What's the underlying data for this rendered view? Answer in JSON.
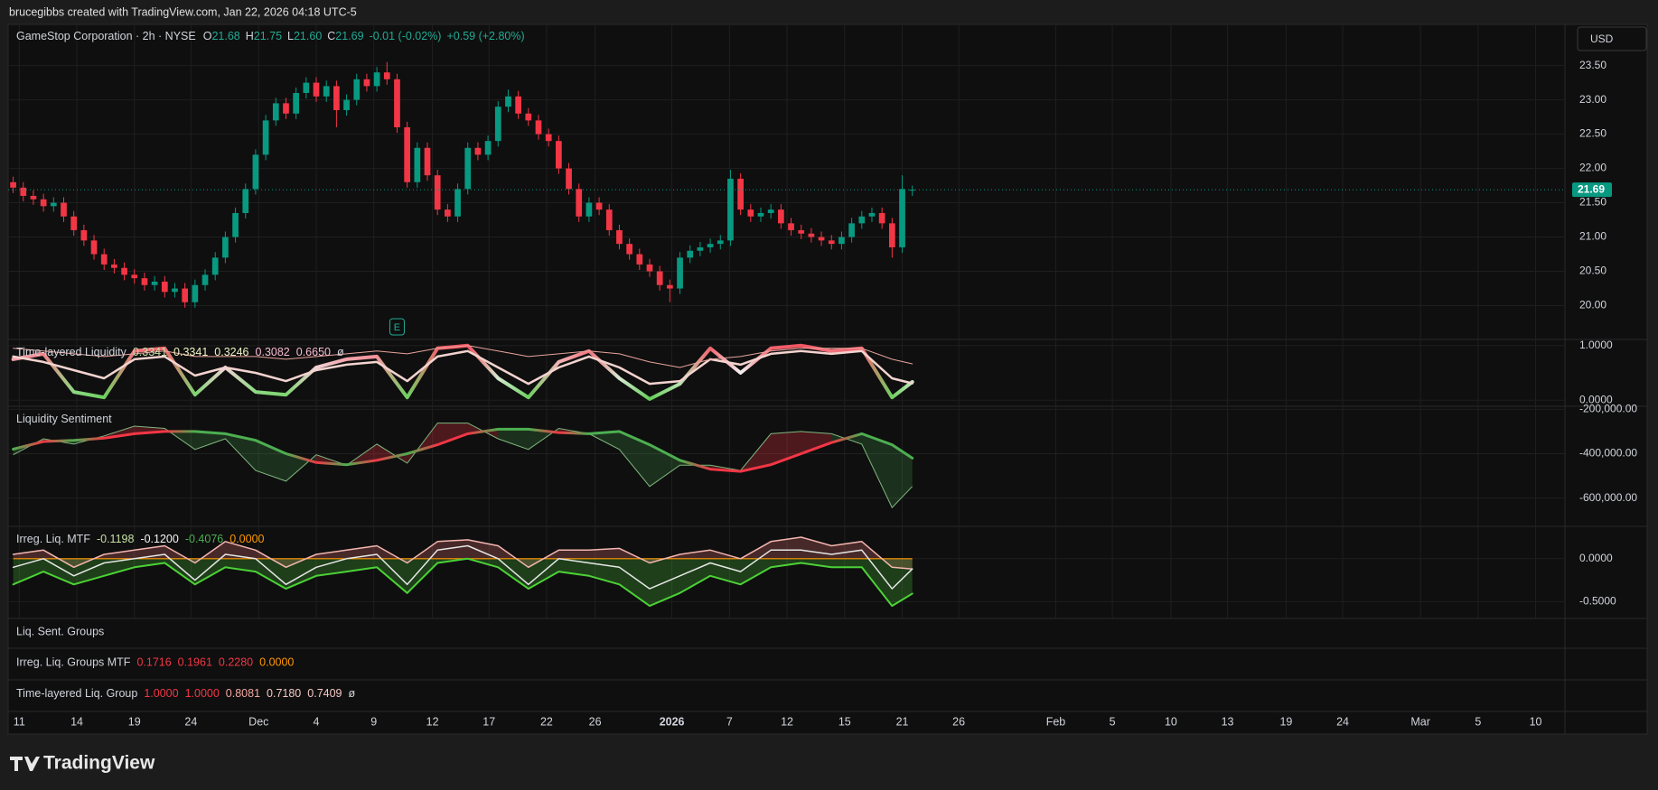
{
  "header": {
    "caption": "brucegibbs created with TradingView.com, Jan 22, 2026 04:18 UTC-5",
    "currency": "USD",
    "brand": "TradingView"
  },
  "chart_data": [
    {
      "type": "candlestick",
      "title": "GameStop Corporation · 2h · NYSE",
      "legend": {
        "prefixes": [
          "O",
          "H",
          "L",
          "C"
        ],
        "labels": [
          "21.68",
          "21.75",
          "21.60",
          "21.69"
        ],
        "change": "-0.01 (-0.02%)",
        "change_total": "+0.59 (+2.80%)",
        "color": "#22ab94"
      },
      "earnings": "E",
      "up_color": "#089981",
      "down_color": "#f23645",
      "grid": true,
      "x": [
        0,
        1,
        2,
        3,
        4,
        5,
        6,
        7,
        8,
        9,
        10,
        11,
        12,
        13,
        14,
        15,
        16,
        17,
        18,
        19,
        20,
        21,
        22,
        23,
        24,
        25,
        26,
        27,
        28,
        29,
        30,
        31,
        32,
        33,
        34,
        35,
        36,
        37,
        38,
        39,
        40,
        41,
        42,
        43,
        44,
        45,
        46,
        47,
        48,
        49,
        50,
        51,
        52,
        53,
        54,
        55,
        56,
        57,
        58,
        59,
        60,
        61,
        62,
        63,
        64,
        65,
        66,
        67,
        68,
        69,
        70,
        71,
        72,
        73,
        74,
        75,
        76,
        77,
        78,
        79,
        80,
        81,
        82,
        83,
        84,
        85,
        86,
        87,
        88,
        89
      ],
      "open": [
        21.8,
        21.72,
        21.6,
        21.55,
        21.45,
        21.5,
        21.3,
        21.1,
        20.95,
        20.75,
        20.6,
        20.55,
        20.45,
        20.4,
        20.3,
        20.35,
        20.2,
        20.25,
        20.05,
        20.3,
        20.45,
        20.7,
        21.0,
        21.35,
        21.7,
        22.2,
        22.7,
        22.95,
        22.8,
        23.1,
        23.25,
        23.05,
        23.2,
        22.85,
        23.0,
        23.3,
        23.2,
        23.4,
        23.3,
        22.6,
        21.8,
        22.3,
        21.9,
        21.4,
        21.3,
        21.7,
        22.3,
        22.2,
        22.4,
        22.9,
        23.05,
        22.8,
        22.7,
        22.5,
        22.4,
        22.0,
        21.7,
        21.3,
        21.5,
        21.4,
        21.1,
        20.9,
        20.75,
        20.6,
        20.5,
        20.3,
        20.25,
        20.7,
        20.8,
        20.85,
        20.9,
        20.95,
        21.85,
        21.4,
        21.3,
        21.35,
        21.4,
        21.2,
        21.1,
        21.05,
        21.0,
        20.95,
        20.9,
        21.0,
        21.2,
        21.3,
        21.35,
        21.2,
        20.85,
        21.68
      ],
      "high": [
        21.88,
        21.8,
        21.68,
        21.63,
        21.58,
        21.58,
        21.38,
        21.18,
        21.03,
        20.83,
        20.68,
        20.63,
        20.53,
        20.48,
        20.43,
        20.43,
        20.33,
        20.33,
        20.38,
        20.53,
        20.78,
        21.08,
        21.43,
        21.78,
        22.28,
        22.78,
        23.03,
        23.03,
        23.18,
        23.33,
        23.33,
        23.28,
        23.28,
        23.08,
        23.38,
        23.38,
        23.48,
        23.55,
        23.38,
        22.68,
        22.38,
        22.38,
        21.98,
        21.48,
        21.78,
        22.38,
        22.38,
        22.48,
        22.98,
        23.15,
        23.13,
        22.88,
        22.78,
        22.58,
        22.48,
        22.08,
        21.78,
        21.58,
        21.58,
        21.48,
        21.18,
        20.98,
        20.83,
        20.68,
        20.58,
        20.38,
        20.78,
        20.88,
        20.93,
        20.98,
        21.03,
        21.98,
        21.93,
        21.48,
        21.43,
        21.48,
        21.48,
        21.28,
        21.18,
        21.13,
        21.08,
        21.03,
        21.08,
        21.28,
        21.38,
        21.43,
        21.43,
        21.28,
        21.9,
        21.75
      ],
      "low": [
        21.64,
        21.52,
        21.47,
        21.37,
        21.37,
        21.22,
        21.02,
        20.87,
        20.67,
        20.52,
        20.47,
        20.37,
        20.32,
        20.22,
        20.22,
        20.12,
        20.12,
        19.97,
        19.97,
        20.22,
        20.37,
        20.62,
        20.92,
        21.27,
        21.62,
        22.12,
        22.62,
        22.72,
        22.72,
        23.02,
        22.97,
        22.97,
        22.6,
        22.77,
        22.92,
        23.12,
        23.12,
        23.22,
        22.52,
        21.72,
        21.72,
        21.82,
        21.32,
        21.22,
        21.22,
        21.62,
        22.12,
        22.12,
        22.32,
        22.82,
        22.72,
        22.62,
        22.42,
        22.32,
        21.92,
        21.62,
        21.22,
        21.22,
        21.32,
        21.02,
        20.82,
        20.67,
        20.52,
        20.42,
        20.22,
        20.05,
        20.17,
        20.62,
        20.72,
        20.77,
        20.82,
        20.87,
        21.32,
        21.22,
        21.22,
        21.27,
        21.12,
        21.02,
        20.97,
        20.92,
        20.87,
        20.82,
        20.82,
        20.92,
        21.12,
        21.22,
        21.12,
        20.7,
        20.77,
        21.6
      ],
      "close": [
        21.72,
        21.6,
        21.55,
        21.45,
        21.5,
        21.3,
        21.1,
        20.95,
        20.75,
        20.6,
        20.55,
        20.45,
        20.4,
        20.3,
        20.35,
        20.2,
        20.25,
        20.05,
        20.3,
        20.45,
        20.7,
        21.0,
        21.35,
        21.7,
        22.2,
        22.7,
        22.95,
        22.8,
        23.1,
        23.25,
        23.05,
        23.2,
        22.85,
        23.0,
        23.3,
        23.2,
        23.4,
        23.3,
        22.6,
        21.8,
        22.3,
        21.9,
        21.4,
        21.3,
        21.7,
        22.3,
        22.2,
        22.4,
        22.9,
        23.05,
        22.8,
        22.7,
        22.5,
        22.4,
        22.0,
        21.7,
        21.3,
        21.5,
        21.4,
        21.1,
        20.9,
        20.75,
        20.6,
        20.5,
        20.3,
        20.25,
        20.7,
        20.8,
        20.85,
        20.9,
        20.95,
        21.85,
        21.4,
        21.3,
        21.35,
        21.4,
        21.2,
        21.1,
        21.05,
        21.0,
        20.95,
        20.9,
        21.0,
        21.2,
        21.3,
        21.35,
        21.2,
        20.85,
        21.7,
        21.69
      ],
      "ylim": [
        19.52,
        24.1
      ],
      "yticks": [
        {
          "value": 20,
          "label": "20.00"
        },
        {
          "value": 20.5,
          "label": "20.50"
        },
        {
          "value": 21,
          "label": "21.00"
        },
        {
          "value": 21.5,
          "label": "21.50"
        },
        {
          "value": 22,
          "label": "22.00"
        },
        {
          "value": 22.5,
          "label": "22.50"
        },
        {
          "value": 23,
          "label": "23.00"
        },
        {
          "value": 23.5,
          "label": "23.50"
        }
      ],
      "xlim": [
        -0.5,
        153.6
      ],
      "xticks": [
        {
          "value": 0.6,
          "label": "11"
        },
        {
          "value": 6.3,
          "label": "14"
        },
        {
          "value": 12,
          "label": "19"
        },
        {
          "value": 17.6,
          "label": "24"
        },
        {
          "value": 24.3,
          "label": "Dec"
        },
        {
          "value": 30,
          "label": "4"
        },
        {
          "value": 35.7,
          "label": "9"
        },
        {
          "value": 41.5,
          "label": "12"
        },
        {
          "value": 47.1,
          "label": "17"
        },
        {
          "value": 52.8,
          "label": "22"
        },
        {
          "value": 57.6,
          "label": "26"
        },
        {
          "value": 65.2,
          "label": "2026",
          "bold": true
        },
        {
          "value": 70.9,
          "label": "7"
        },
        {
          "value": 76.6,
          "label": "12"
        },
        {
          "value": 82.3,
          "label": "15"
        },
        {
          "value": 88,
          "label": "21"
        },
        {
          "value": 93.6,
          "label": "26"
        },
        {
          "value": 103.2,
          "label": "Feb"
        },
        {
          "value": 108.8,
          "label": "5"
        },
        {
          "value": 114.6,
          "label": "10"
        },
        {
          "value": 120.2,
          "label": "13"
        },
        {
          "value": 126,
          "label": "19"
        },
        {
          "value": 131.6,
          "label": "24"
        },
        {
          "value": 139.3,
          "label": "Mar"
        },
        {
          "value": 145,
          "label": "5"
        },
        {
          "value": 150.7,
          "label": "10"
        }
      ]
    },
    {
      "type": "line",
      "title": "Time-layered Liquidity",
      "legend_values": [
        "0.3341",
        "0.3341",
        "0.3246",
        "0.3082",
        "0.6650",
        "ø"
      ],
      "legend_colors": [
        "#c5e1a5",
        "#f0f4c3",
        "#f0f4c3",
        "#f8bbd0",
        "#f8bbd0",
        "#d1d4dc"
      ],
      "gradient": [
        "#43c531",
        "#f2f2f2",
        "#f23645"
      ],
      "x": [
        0,
        3,
        6,
        9,
        12,
        15,
        18,
        21,
        24,
        27,
        30,
        33,
        36,
        39,
        42,
        45,
        48,
        51,
        54,
        57,
        60,
        63,
        66,
        69,
        72,
        75,
        78,
        81,
        84,
        87,
        89
      ],
      "series": [
        {
          "values": [
            0.75,
            0.85,
            0.15,
            0.05,
            0.9,
            0.95,
            0.1,
            0.6,
            0.15,
            0.1,
            0.6,
            0.75,
            0.8,
            0.05,
            0.95,
            1.0,
            0.4,
            0.05,
            0.7,
            0.9,
            0.4,
            0.02,
            0.3,
            0.95,
            0.5,
            0.95,
            1.0,
            0.9,
            0.95,
            0.05,
            0.3341
          ],
          "gradient": true,
          "width": 4
        },
        {
          "values": [
            0.8,
            0.7,
            0.55,
            0.4,
            0.75,
            0.8,
            0.45,
            0.6,
            0.5,
            0.35,
            0.55,
            0.65,
            0.7,
            0.35,
            0.8,
            0.9,
            0.6,
            0.3,
            0.6,
            0.8,
            0.6,
            0.3,
            0.35,
            0.75,
            0.65,
            0.85,
            0.9,
            0.85,
            0.9,
            0.4,
            0.3082
          ],
          "color": "#f3d3cf",
          "width": 2.5
        },
        {
          "values": [
            0.95,
            0.9,
            0.85,
            0.8,
            0.85,
            0.9,
            0.8,
            0.8,
            0.8,
            0.75,
            0.8,
            0.85,
            0.9,
            0.85,
            0.95,
            1.0,
            0.9,
            0.8,
            0.85,
            0.9,
            0.85,
            0.7,
            0.6,
            0.75,
            0.8,
            0.9,
            0.95,
            0.95,
            0.95,
            0.75,
            0.665
          ],
          "color": "#e8a39c",
          "width": 1
        }
      ],
      "ylim": [
        -0.096,
        1.096
      ],
      "yticks": [
        {
          "value": 0,
          "label": "0.0000"
        },
        {
          "value": 1,
          "label": "1.0000"
        }
      ]
    },
    {
      "type": "band",
      "title": "Liquidity Sentiment",
      "up_color": "#f23645",
      "down_color": "#4caf50",
      "up_fill": "rgba(242,54,69,0.28)",
      "down_fill": "rgba(76,175,80,0.22)",
      "x": [
        0,
        3,
        6,
        9,
        12,
        15,
        18,
        21,
        24,
        27,
        30,
        33,
        36,
        39,
        42,
        45,
        48,
        51,
        54,
        57,
        60,
        63,
        66,
        69,
        72,
        75,
        78,
        81,
        84,
        87,
        89
      ],
      "series": [
        {
          "values": [
            -405000,
            -333000,
            -357000,
            -320000,
            -276000,
            -286000,
            -381000,
            -333000,
            -476000,
            -524000,
            -405000,
            -452000,
            -357000,
            -443000,
            -262000,
            -262000,
            -333000,
            -381000,
            -286000,
            -310000,
            -381000,
            -548000,
            -452000,
            -452000,
            -476000,
            -310000,
            -300000,
            -310000,
            -357000,
            -643000,
            -548000
          ],
          "color": "#7fb77e",
          "width": 1
        },
        {
          "values": [
            -380000,
            -345000,
            -340000,
            -330000,
            -310000,
            -300000,
            -300000,
            -310000,
            -340000,
            -400000,
            -440000,
            -450000,
            -430000,
            -400000,
            -360000,
            -310000,
            -290000,
            -290000,
            -305000,
            -310000,
            -300000,
            -360000,
            -430000,
            -470000,
            -480000,
            -450000,
            -400000,
            -350000,
            -310000,
            -360000,
            -420000
          ],
          "width": 3
        }
      ],
      "ylim": [
        -723800,
        -190500
      ],
      "yticks": [
        {
          "value": -200000,
          "label": "-200,000.00"
        },
        {
          "value": -400000,
          "label": "-400,000.00"
        },
        {
          "value": -600000,
          "label": "-600,000.00"
        }
      ]
    },
    {
      "type": "line",
      "title": "Irreg. Liq. MTF",
      "legend_values": [
        "-0.1198",
        "-0.1200",
        "-0.4076",
        "0.0000"
      ],
      "legend_colors": [
        "#c5e1a5",
        "#f5f5f5",
        "#4caf50",
        "#ff9800"
      ],
      "reference_line": 0,
      "reference_color": "#ff9800",
      "x": [
        0,
        3,
        6,
        9,
        12,
        15,
        18,
        21,
        24,
        27,
        30,
        33,
        36,
        39,
        42,
        45,
        48,
        51,
        54,
        57,
        60,
        63,
        66,
        69,
        72,
        75,
        78,
        81,
        84,
        87,
        89
      ],
      "series": [
        {
          "values": [
            0.05,
            0.1,
            -0.1,
            0.05,
            0.1,
            0.15,
            -0.05,
            0.2,
            0.1,
            -0.1,
            0.05,
            0.1,
            0.15,
            -0.05,
            0.2,
            0.22,
            0.15,
            -0.1,
            0.1,
            0.1,
            0.12,
            -0.05,
            0.05,
            0.1,
            0.0,
            0.2,
            0.25,
            0.15,
            0.2,
            -0.1,
            -0.1198
          ],
          "color": "#f4b6b0",
          "width": 1.5,
          "fill": "rgba(242,120,120,0.25)"
        },
        {
          "values": [
            -0.1,
            0.0,
            -0.2,
            -0.05,
            0.0,
            0.05,
            -0.25,
            0.05,
            0.0,
            -0.3,
            -0.1,
            0.0,
            0.05,
            -0.3,
            0.1,
            0.15,
            0.0,
            -0.3,
            0.0,
            -0.05,
            -0.1,
            -0.35,
            -0.2,
            -0.05,
            -0.15,
            0.1,
            0.1,
            0.05,
            0.1,
            -0.35,
            -0.12
          ],
          "color": "#e6e6e6",
          "width": 1.5
        },
        {
          "values": [
            -0.3,
            -0.15,
            -0.3,
            -0.2,
            -0.1,
            -0.05,
            -0.3,
            -0.1,
            -0.15,
            -0.35,
            -0.2,
            -0.15,
            -0.1,
            -0.4,
            -0.05,
            0.0,
            -0.1,
            -0.35,
            -0.15,
            -0.2,
            -0.3,
            -0.55,
            -0.4,
            -0.2,
            -0.3,
            -0.1,
            -0.05,
            -0.1,
            -0.1,
            -0.55,
            -0.4076
          ],
          "color": "#4cd137",
          "width": 2,
          "fill": "rgba(76,209,55,0.25)"
        }
      ],
      "ylim": [
        -0.707,
        0.366
      ],
      "yticks": [
        {
          "value": 0,
          "label": "0.0000"
        },
        {
          "value": -0.5,
          "label": "-0.5000"
        }
      ]
    },
    {
      "type": "panel",
      "title": "Liq. Sent. Groups"
    },
    {
      "type": "panel",
      "title": "Irreg. Liq. Groups MTF",
      "legend_values": [
        "0.1716",
        "0.1961",
        "0.2280",
        "0.0000"
      ],
      "legend_colors": [
        "#f23645",
        "#f23645",
        "#f23645",
        "#ff9800"
      ]
    },
    {
      "type": "panel",
      "title": "Time-layered Liq. Group",
      "legend_values": [
        "1.0000",
        "1.0000",
        "0.8081",
        "0.7180",
        "0.7409",
        "ø"
      ],
      "legend_colors": [
        "#f23645",
        "#f23645",
        "#f4a6a0",
        "#f4c7c3",
        "#f4c7c3",
        "#d1d4dc"
      ]
    }
  ]
}
